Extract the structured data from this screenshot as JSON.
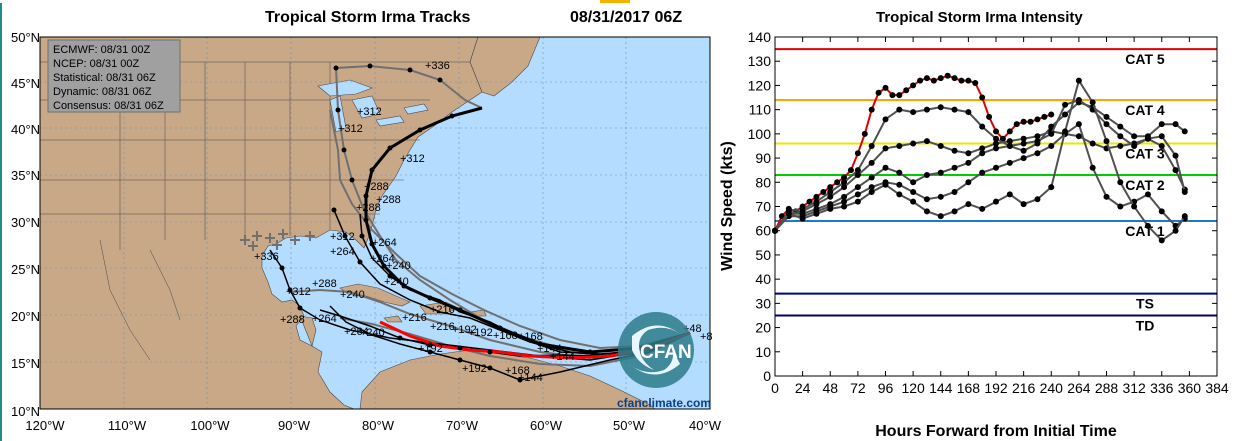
{
  "track_map": {
    "title": "Tropical Storm Irma Tracks",
    "datetime": "08/31/2017 06Z",
    "lat_labels": [
      "50°N",
      "45°N",
      "40°N",
      "35°N",
      "30°N",
      "25°N",
      "20°N",
      "15°N",
      "10°N"
    ],
    "lon_labels": [
      "120°W",
      "110°W",
      "100°W",
      "90°W",
      "80°W",
      "70°W",
      "60°W",
      "50°W",
      "40°W"
    ],
    "legend": [
      "ECMWF: 08/31 00Z",
      "NCEP: 08/31 00Z",
      "Statistical: 08/31 06Z",
      "Dynamic: 08/31 06Z",
      "Consensus: 08/31 06Z"
    ],
    "hour_labels": [
      "+336",
      "+312",
      "+288",
      "+264",
      "+240",
      "+216",
      "+192",
      "+168",
      "+144",
      "+48",
      "+8"
    ],
    "watermark": "cfanclimate.com",
    "logo_text": "CFAN",
    "colors": {
      "ocean": "#b4dcff",
      "land": "#c8a887",
      "track": "#000000",
      "consensus": "#ff0000",
      "ensemble": "#707070"
    }
  },
  "chart_data": {
    "type": "line",
    "title": "Tropical Storm Irma Intensity",
    "xlabel": "Hours Forward from Initial Time",
    "ylabel": "Wind Speed (kts)",
    "xlim": [
      0,
      384
    ],
    "ylim": [
      0,
      140
    ],
    "xticks": [
      0,
      24,
      48,
      72,
      96,
      120,
      144,
      168,
      192,
      216,
      240,
      264,
      288,
      312,
      336,
      360,
      384
    ],
    "yticks": [
      0,
      10,
      20,
      30,
      40,
      50,
      60,
      70,
      80,
      90,
      100,
      110,
      120,
      130,
      140
    ],
    "thresholds": [
      {
        "label": "CAT 5",
        "value": 135,
        "color": "#e00000"
      },
      {
        "label": "CAT 4",
        "value": 114,
        "color": "#ffa500"
      },
      {
        "label": "CAT 3",
        "value": 96,
        "color": "#e8e800"
      },
      {
        "label": "CAT 2",
        "value": 83,
        "color": "#00cc00"
      },
      {
        "label": "CAT 1",
        "value": 64,
        "color": "#1e78d2"
      },
      {
        "label": "TS",
        "value": 34,
        "color": "#00008c"
      },
      {
        "label": "TD",
        "value": 25,
        "color": "#000064"
      }
    ],
    "series": [
      {
        "color": "#e00000",
        "x": [
          0,
          6,
          12,
          18,
          24,
          30,
          36,
          42,
          48,
          54,
          60,
          66,
          72,
          78,
          84,
          90,
          96,
          102,
          108,
          114,
          120,
          126,
          132,
          138,
          144,
          150,
          156,
          162,
          168,
          174,
          180,
          186,
          192,
          198,
          204,
          210,
          216,
          222,
          228,
          234,
          240
        ],
        "y": [
          60,
          66,
          69,
          68,
          70,
          72,
          74,
          76,
          78,
          80,
          82,
          85,
          92,
          100,
          110,
          117,
          119,
          116,
          116,
          118,
          120,
          122,
          123,
          122,
          123,
          124,
          123,
          122,
          122,
          121,
          115,
          107,
          101,
          98,
          101,
          104,
          105,
          105,
          106,
          107,
          108
        ]
      },
      {
        "color": "#000000",
        "x": [
          0,
          12,
          24,
          36,
          48,
          60,
          72,
          84,
          96,
          108,
          120,
          132,
          144,
          156,
          168,
          180,
          192,
          204,
          216,
          228,
          240,
          252,
          264,
          276,
          288,
          300,
          312,
          324,
          336,
          348,
          356
        ],
        "y": [
          60,
          68,
          69,
          72,
          76,
          80,
          85,
          95,
          106,
          110,
          109,
          110,
          111,
          110,
          109,
          103,
          98,
          95,
          93,
          96,
          103,
          108,
          113,
          111,
          107,
          103,
          99,
          99,
          104,
          104,
          101
        ]
      },
      {
        "color": "#000000",
        "x": [
          0,
          12,
          24,
          36,
          48,
          60,
          72,
          84,
          96,
          108,
          120,
          132,
          144,
          156,
          168,
          180,
          192,
          204,
          216,
          228,
          240,
          252,
          264,
          276,
          288,
          300,
          312,
          324,
          336,
          348,
          356
        ],
        "y": [
          60,
          67,
          68,
          71,
          74,
          78,
          83,
          88,
          94,
          95,
          96,
          97,
          95,
          93,
          92,
          94,
          96,
          97,
          98,
          99,
          101,
          100,
          99,
          96,
          94,
          95,
          96,
          98,
          95,
          85,
          77
        ]
      },
      {
        "color": "#000000",
        "x": [
          0,
          12,
          24,
          36,
          48,
          60,
          72,
          84,
          96,
          108,
          120,
          132,
          144,
          156,
          168,
          180,
          192,
          204,
          216,
          228,
          240,
          252,
          264,
          276,
          288,
          300,
          312,
          324,
          336,
          348,
          356
        ],
        "y": [
          60,
          67,
          67,
          69,
          71,
          74,
          78,
          82,
          86,
          84,
          80,
          83,
          84,
          86,
          88,
          92,
          94,
          95,
          96,
          97,
          100,
          112,
          114,
          110,
          104,
          99,
          95,
          98,
          99,
          91,
          76
        ]
      },
      {
        "color": "#000000",
        "x": [
          0,
          12,
          24,
          36,
          48,
          60,
          72,
          84,
          96,
          108,
          120,
          132,
          144,
          156,
          168,
          180,
          192,
          204,
          216,
          228,
          240,
          252,
          264,
          276,
          288,
          300,
          312,
          324,
          336,
          348,
          356
        ],
        "y": [
          60,
          66,
          66,
          68,
          70,
          72,
          75,
          78,
          80,
          79,
          76,
          73,
          74,
          76,
          80,
          84,
          86,
          88,
          90,
          92,
          95,
          100,
          104,
          86,
          74,
          70,
          72,
          75,
          68,
          62,
          65
        ]
      },
      {
        "color": "#000000",
        "x": [
          0,
          12,
          24,
          36,
          48,
          60,
          72,
          84,
          96,
          108,
          120,
          132,
          144,
          156,
          168,
          180,
          192,
          204,
          216,
          228,
          240,
          252,
          264,
          276,
          288,
          300,
          312,
          324,
          336,
          348,
          356
        ],
        "y": [
          60,
          67,
          65,
          67,
          69,
          70,
          72,
          76,
          79,
          75,
          72,
          68,
          66,
          68,
          71,
          69,
          72,
          75,
          71,
          73,
          78,
          101,
          122,
          113,
          97,
          80,
          70,
          62,
          56,
          60,
          66
        ]
      }
    ]
  }
}
